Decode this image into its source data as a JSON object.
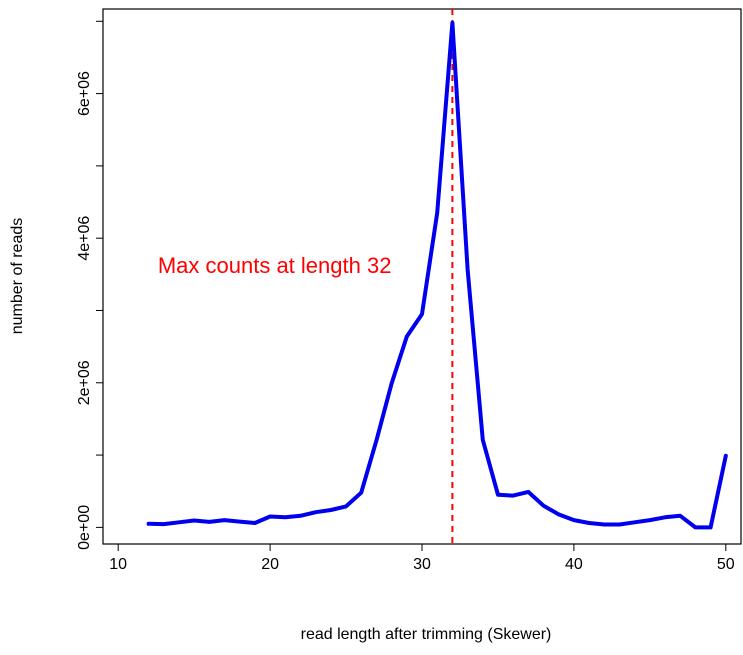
{
  "chart_data": {
    "type": "line",
    "title": "",
    "xlabel": "read length after trimming (Skewer)",
    "ylabel": "number of reads",
    "xlim": [
      9,
      51
    ],
    "ylim": [
      -230000,
      7170000
    ],
    "x_ticks": [
      10,
      20,
      30,
      40,
      50
    ],
    "x_tick_labels": [
      "10",
      "20",
      "30",
      "40",
      "50"
    ],
    "y_ticks": [
      0,
      1000000,
      2000000,
      3000000,
      4000000,
      5000000,
      6000000,
      7000000
    ],
    "y_tick_labels": [
      "0e+00",
      "",
      "2e+06",
      "",
      "4e+06",
      "",
      "6e+06",
      ""
    ],
    "grid": false,
    "series": [
      {
        "color": "#0000ee",
        "x": [
          12,
          13,
          14,
          15,
          16,
          17,
          18,
          19,
          20,
          21,
          22,
          23,
          24,
          25,
          26,
          27,
          28,
          29,
          30,
          31,
          32,
          33,
          34,
          35,
          36,
          37,
          38,
          39,
          40,
          41,
          42,
          43,
          44,
          45,
          46,
          47,
          48,
          49,
          50
        ],
        "y": [
          50000,
          45000,
          70000,
          95000,
          75000,
          100000,
          80000,
          60000,
          150000,
          140000,
          160000,
          210000,
          240000,
          290000,
          480000,
          1200000,
          1990000,
          2640000,
          2950000,
          4350000,
          6980000,
          3570000,
          1210000,
          450000,
          440000,
          490000,
          300000,
          180000,
          100000,
          60000,
          40000,
          40000,
          70000,
          100000,
          140000,
          160000,
          0,
          0,
          990000
        ]
      }
    ],
    "vline": {
      "x": 32,
      "color": "#ff0000",
      "style": "dashed"
    },
    "annotation": {
      "text": "Max counts at length 32",
      "color": "#ff0000",
      "x": 20.3,
      "y": 3520000
    }
  }
}
